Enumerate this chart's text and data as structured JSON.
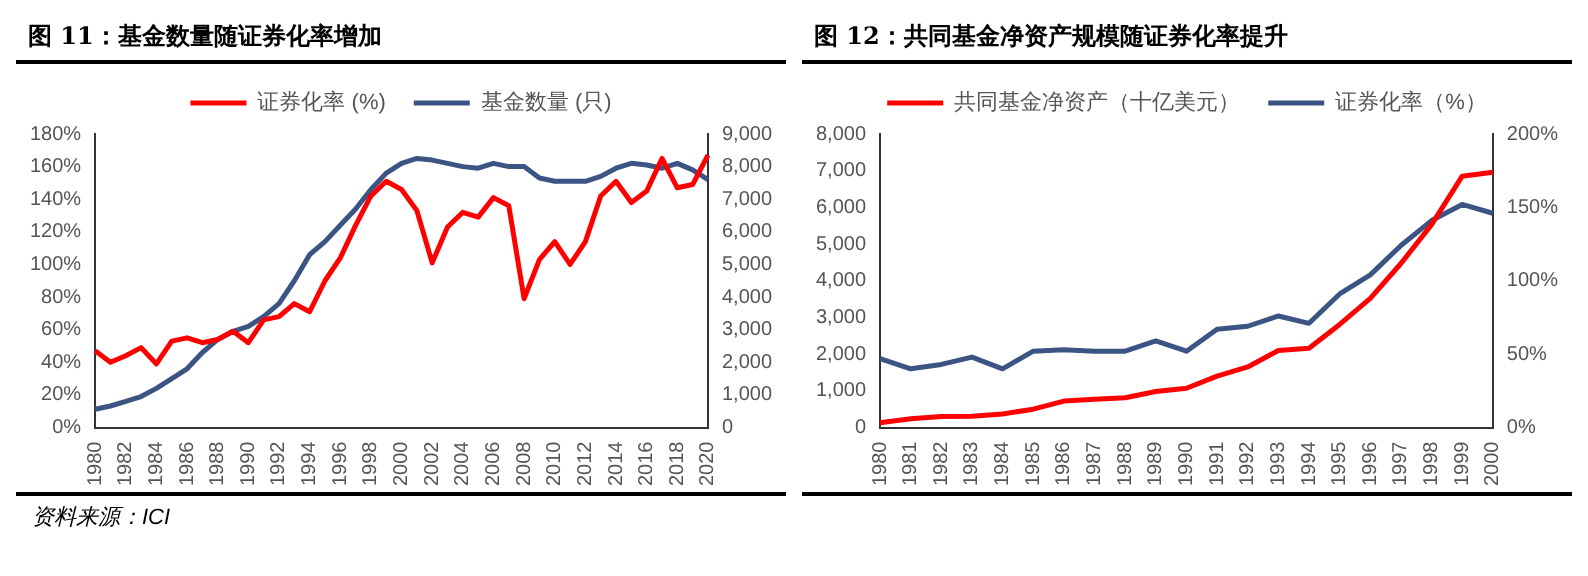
{
  "chart_data": [
    {
      "type": "line",
      "title": "图 11：基金数量随证券化率增加",
      "legend": "top",
      "marker": "none",
      "line_style": "solid",
      "grid": false,
      "categories": [
        "1980",
        null,
        "1982",
        null,
        "1984",
        null,
        "1986",
        null,
        "1988",
        null,
        "1990",
        null,
        "1992",
        null,
        "1994",
        null,
        "1996",
        null,
        "1998",
        null,
        "2000",
        null,
        "2002",
        null,
        "2004",
        null,
        "2006",
        null,
        "2008",
        null,
        "2010",
        null,
        "2012",
        null,
        "2014",
        null,
        "2016",
        null,
        "2018",
        null,
        "2020"
      ],
      "series": [
        {
          "name": "证券化率 (%)",
          "color": "#ff0000",
          "values": [
            47,
            40,
            44,
            49,
            39,
            53,
            55,
            52,
            54,
            59,
            52,
            66,
            68,
            76,
            71,
            90,
            104,
            124,
            142,
            151,
            146,
            133,
            101,
            123,
            132,
            129,
            141,
            136,
            79,
            103,
            114,
            100,
            114,
            142,
            151,
            138,
            145,
            165,
            147,
            149,
            167
          ]
        },
        {
          "name": "基金数量 (只)",
          "color": "#3b5484",
          "axis": "y2",
          "values": [
            560,
            660,
            800,
            950,
            1200,
            1500,
            1800,
            2300,
            2700,
            2950,
            3100,
            3400,
            3800,
            4500,
            5300,
            5700,
            6200,
            6700,
            7300,
            7800,
            8100,
            8250,
            8200,
            8100,
            8000,
            7950,
            8100,
            8000,
            8000,
            7650,
            7550,
            7550,
            7550,
            7700,
            7950,
            8100,
            8050,
            7950,
            8100,
            7900,
            7600
          ]
        }
      ],
      "ylim": [
        0,
        180
      ],
      "yticks": [
        {
          "value": 0,
          "label": "0%"
        },
        {
          "value": 20,
          "label": "20%"
        },
        {
          "value": 40,
          "label": "40%"
        },
        {
          "value": 60,
          "label": "60%"
        },
        {
          "value": 80,
          "label": "80%"
        },
        {
          "value": 100,
          "label": "100%"
        },
        {
          "value": 120,
          "label": "120%"
        },
        {
          "value": 140,
          "label": "140%"
        },
        {
          "value": 160,
          "label": "160%"
        },
        {
          "value": 180,
          "label": "180%"
        }
      ],
      "y2lim": [
        0,
        9000
      ],
      "y2ticks": [
        0,
        {
          "value": 1000,
          "label": "1,000"
        },
        {
          "value": 2000,
          "label": "2,000"
        },
        {
          "value": 3000,
          "label": "3,000"
        },
        {
          "value": 4000,
          "label": "4,000"
        },
        {
          "value": 5000,
          "label": "5,000"
        },
        {
          "value": 6000,
          "label": "6,000"
        },
        {
          "value": 7000,
          "label": "7,000"
        },
        {
          "value": 8000,
          "label": "8,000"
        },
        {
          "value": 9000,
          "label": "9,000"
        }
      ],
      "annotations": [
        "资料来源：ICI"
      ]
    },
    {
      "type": "line",
      "title": "图 12：共同基金净资产规模随证券化率提升",
      "legend": "top",
      "marker": "none",
      "line_style": "solid",
      "grid": false,
      "categories": [
        "1980",
        "1981",
        "1982",
        "1983",
        "1984",
        "1985",
        "1986",
        "1987",
        "1988",
        "1989",
        "1990",
        "1991",
        "1992",
        "1993",
        "1994",
        "1995",
        "1996",
        "1997",
        "1998",
        "1999",
        "2000"
      ],
      "series": [
        {
          "name": "共同基金净资产（十亿美元）",
          "color": "#ff0000",
          "values": [
            130,
            240,
            300,
            310,
            370,
            500,
            720,
            770,
            810,
            980,
            1070,
            1400,
            1650,
            2100,
            2160,
            2810,
            3520,
            4470,
            5530,
            6850,
            6960
          ]
        },
        {
          "name": "证券化率（%）",
          "color": "#3b5484",
          "axis": "y2",
          "values": [
            47,
            40,
            43,
            48,
            40,
            52,
            53,
            52,
            52,
            59,
            52,
            67,
            69,
            76,
            71,
            91,
            104,
            124,
            141,
            152,
            146
          ]
        }
      ],
      "ylim": [
        0,
        8000
      ],
      "yticks": [
        0,
        {
          "value": 1000,
          "label": "1,000"
        },
        {
          "value": 2000,
          "label": "2,000"
        },
        {
          "value": 3000,
          "label": "3,000"
        },
        {
          "value": 4000,
          "label": "4,000"
        },
        {
          "value": 5000,
          "label": "5,000"
        },
        {
          "value": 6000,
          "label": "6,000"
        },
        {
          "value": 7000,
          "label": "7,000"
        },
        {
          "value": 8000,
          "label": "8,000"
        }
      ],
      "y2lim": [
        0,
        200
      ],
      "y2ticks": [
        {
          "value": 0,
          "label": "0%"
        },
        {
          "value": 50,
          "label": "50%"
        },
        {
          "value": 100,
          "label": "100%"
        },
        {
          "value": 150,
          "label": "150%"
        },
        {
          "value": 200,
          "label": "200%"
        }
      ]
    }
  ]
}
